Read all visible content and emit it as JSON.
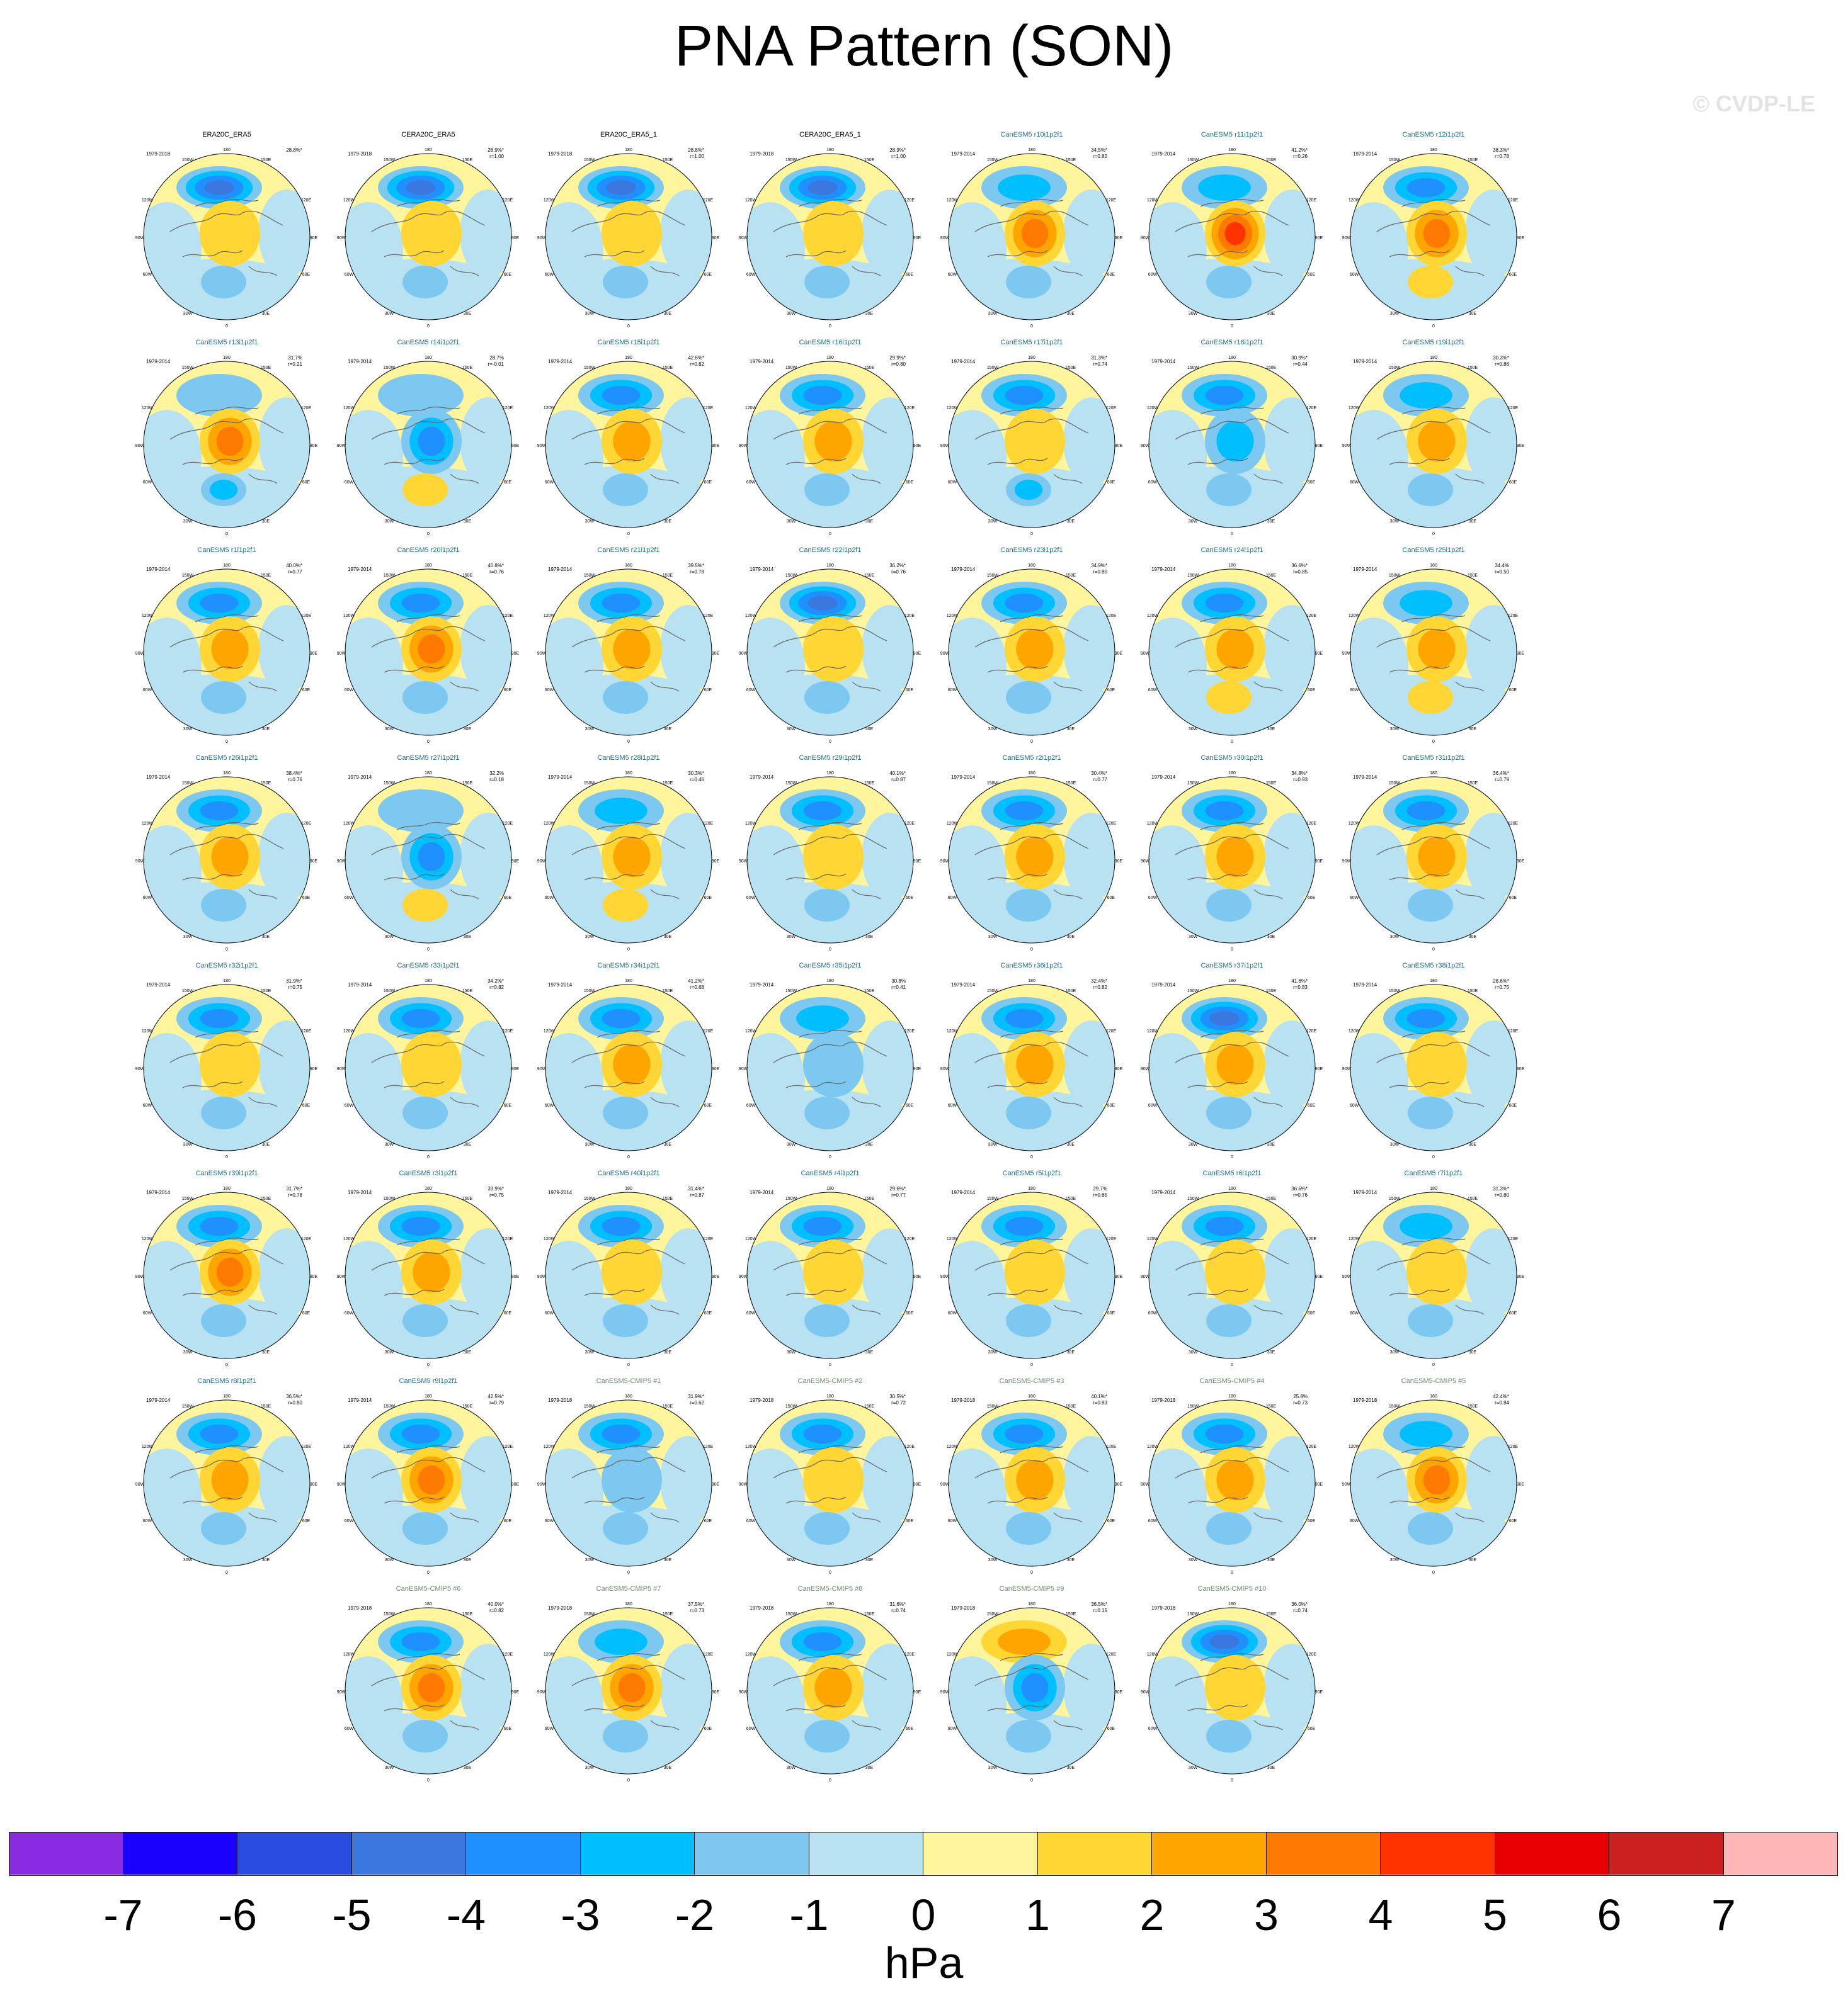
{
  "title": "PNA Pattern (SON)",
  "watermark": "© CVDP-LE",
  "colors": {
    "obs_title": "#000000",
    "model_title": "#1f6f8b",
    "cmip5_title": "#6b8e6b",
    "levels": [
      "#8a2be2",
      "#1a00ff",
      "#2a4ce0",
      "#3a78e0",
      "#1e90ff",
      "#00bfff",
      "#7cc8f0",
      "#b8e2f2",
      "#fff59d",
      "#ffd633",
      "#ffa500",
      "#ff7a00",
      "#ff3300",
      "#e60000",
      "#cc1f1f",
      "#ffb6b6"
    ]
  },
  "longitude_labels": [
    "180",
    "150W",
    "150E",
    "120W",
    "120E",
    "90W",
    "90E",
    "60W",
    "60E",
    "30W",
    "30E",
    "0"
  ],
  "chart_data": {
    "type": "polar contour map panels",
    "variable": "PNA Pattern (SON)",
    "colorbar": {
      "units": "hPa",
      "ticks": [
        "-7",
        "-6",
        "-5",
        "-4",
        "-3",
        "-2",
        "-1",
        "0",
        "1",
        "2",
        "3",
        "4",
        "5",
        "6",
        "7"
      ]
    },
    "panels": [
      {
        "title": "ERA20C_ERA5",
        "period": "1979-2018",
        "pct": "28.8%*",
        "r": "",
        "group": "obs",
        "pac_low": -4,
        "arctic": 1,
        "atl": -1
      },
      {
        "title": "CERA20C_ERA5",
        "period": "1979-2018",
        "pct": "28.9%*",
        "r": "r=1.00",
        "group": "obs",
        "pac_low": -4,
        "arctic": 1,
        "atl": -1
      },
      {
        "title": "ERA20C_ERA5_1",
        "period": "1979-2018",
        "pct": "28.8%*",
        "r": "r=1.00",
        "group": "obs",
        "pac_low": -4,
        "arctic": 1,
        "atl": -1
      },
      {
        "title": "CERA20C_ERA5_1",
        "period": "1979-2018",
        "pct": "28.9%*",
        "r": "r=1.00",
        "group": "obs",
        "pac_low": -4,
        "arctic": 1,
        "atl": -1
      },
      {
        "title": "CanESM5 r10i1p2f1",
        "period": "1979-2014",
        "pct": "34.5%*",
        "r": "r=0.82",
        "group": "model",
        "pac_low": -2,
        "arctic": 3,
        "atl": -1
      },
      {
        "title": "CanESM5 r11i1p2f1",
        "period": "1979-2014",
        "pct": "41.2%*",
        "r": "r=0.26",
        "group": "model",
        "pac_low": -2,
        "arctic": 4,
        "atl": -1
      },
      {
        "title": "CanESM5 r12i1p2f1",
        "period": "1979-2014",
        "pct": "38.3%*",
        "r": "r=0.78",
        "group": "model",
        "pac_low": -3,
        "arctic": 3,
        "atl": 1
      },
      {
        "title": "CanESM5 r13i1p2f1",
        "period": "1979-2014",
        "pct": "31.7%",
        "r": "r=0.21",
        "group": "model",
        "pac_low": -1,
        "arctic": 3,
        "atl": -2
      },
      {
        "title": "CanESM5 r14i1p2f1",
        "period": "1979-2014",
        "pct": "28.7%",
        "r": "r=-0.01",
        "group": "model",
        "pac_low": -1,
        "arctic": -3,
        "atl": 1
      },
      {
        "title": "CanESM5 r15i1p2f1",
        "period": "1979-2014",
        "pct": "42.6%*",
        "r": "r=0.82",
        "group": "model",
        "pac_low": -3,
        "arctic": 2,
        "atl": -1
      },
      {
        "title": "CanESM5 r16i1p2f1",
        "period": "1979-2014",
        "pct": "29.9%*",
        "r": "r=0.80",
        "group": "model",
        "pac_low": -3,
        "arctic": 2,
        "atl": -1
      },
      {
        "title": "CanESM5 r17i1p2f1",
        "period": "1979-2014",
        "pct": "31.3%*",
        "r": "r=0.74",
        "group": "model",
        "pac_low": -3,
        "arctic": 1,
        "atl": -2
      },
      {
        "title": "CanESM5 r18i1p2f1",
        "period": "1979-2014",
        "pct": "30.9%*",
        "r": "r=0.44",
        "group": "model",
        "pac_low": -3,
        "arctic": -2,
        "atl": -1
      },
      {
        "title": "CanESM5 r19i1p2f1",
        "period": "1979-2014",
        "pct": "30.3%*",
        "r": "r=0.86",
        "group": "model",
        "pac_low": -2,
        "arctic": 2,
        "atl": -1
      },
      {
        "title": "CanESM5 r1i1p2f1",
        "period": "1979-2014",
        "pct": "40.0%*",
        "r": "r=0.77",
        "group": "model",
        "pac_low": -3,
        "arctic": 2,
        "atl": -1
      },
      {
        "title": "CanESM5 r20i1p2f1",
        "period": "1979-2014",
        "pct": "40.8%*",
        "r": "r=0.76",
        "group": "model",
        "pac_low": -3,
        "arctic": 3,
        "atl": -1
      },
      {
        "title": "CanESM5 r21i1p2f1",
        "period": "1979-2014",
        "pct": "39.5%*",
        "r": "r=0.78",
        "group": "model",
        "pac_low": -3,
        "arctic": 2,
        "atl": -1
      },
      {
        "title": "CanESM5 r22i1p2f1",
        "period": "1979-2014",
        "pct": "36.2%*",
        "r": "r=0.76",
        "group": "model",
        "pac_low": -4,
        "arctic": 1,
        "atl": -1
      },
      {
        "title": "CanESM5 r23i1p2f1",
        "period": "1979-2014",
        "pct": "34.9%*",
        "r": "r=0.85",
        "group": "model",
        "pac_low": -3,
        "arctic": 2,
        "atl": -1
      },
      {
        "title": "CanESM5 r24i1p2f1",
        "period": "1979-2014",
        "pct": "36.6%*",
        "r": "r=0.85",
        "group": "model",
        "pac_low": -3,
        "arctic": 2,
        "atl": 1
      },
      {
        "title": "CanESM5 r25i1p2f1",
        "period": "1979-2014",
        "pct": "34.4%",
        "r": "r=0.50",
        "group": "model",
        "pac_low": -2,
        "arctic": 2,
        "atl": 1
      },
      {
        "title": "CanESM5 r26i1p2f1",
        "period": "1979-2014",
        "pct": "38.4%*",
        "r": "r=0.76",
        "group": "model",
        "pac_low": -3,
        "arctic": 2,
        "atl": -1
      },
      {
        "title": "CanESM5 r27i1p2f1",
        "period": "1979-2014",
        "pct": "32.2%",
        "r": "r=0.18",
        "group": "model",
        "pac_low": -1,
        "arctic": -3,
        "atl": 1
      },
      {
        "title": "CanESM5 r28i1p2f1",
        "period": "1979-2014",
        "pct": "30.3%*",
        "r": "r=0.46",
        "group": "model",
        "pac_low": -2,
        "arctic": 2,
        "atl": 1
      },
      {
        "title": "CanESM5 r29i1p2f1",
        "period": "1979-2014",
        "pct": "40.1%*",
        "r": "r=0.87",
        "group": "model",
        "pac_low": -3,
        "arctic": 1,
        "atl": -1
      },
      {
        "title": "CanESM5 r2i1p2f1",
        "period": "1979-2014",
        "pct": "30.4%*",
        "r": "r=0.77",
        "group": "model",
        "pac_low": -3,
        "arctic": 2,
        "atl": -1
      },
      {
        "title": "CanESM5 r30i1p2f1",
        "period": "1979-2014",
        "pct": "34.8%*",
        "r": "r=0.93",
        "group": "model",
        "pac_low": -3,
        "arctic": 2,
        "atl": -1
      },
      {
        "title": "CanESM5 r31i1p2f1",
        "period": "1979-2014",
        "pct": "36.4%*",
        "r": "r=0.79",
        "group": "model",
        "pac_low": -3,
        "arctic": 2,
        "atl": -1
      },
      {
        "title": "CanESM5 r32i1p2f1",
        "period": "1979-2014",
        "pct": "31.9%*",
        "r": "r=0.75",
        "group": "model",
        "pac_low": -3,
        "arctic": 1,
        "atl": -1
      },
      {
        "title": "CanESM5 r33i1p2f1",
        "period": "1979-2014",
        "pct": "34.2%*",
        "r": "r=0.82",
        "group": "model",
        "pac_low": -3,
        "arctic": 1,
        "atl": -1
      },
      {
        "title": "CanESM5 r34i1p2f1",
        "period": "1979-2014",
        "pct": "41.2%*",
        "r": "r=0.68",
        "group": "model",
        "pac_low": -3,
        "arctic": 2,
        "atl": -1
      },
      {
        "title": "CanESM5 r35i1p2f1",
        "period": "1979-2014",
        "pct": "30.8%",
        "r": "r=0.41",
        "group": "model",
        "pac_low": -2,
        "arctic": -1,
        "atl": -1
      },
      {
        "title": "CanESM5 r36i1p2f1",
        "period": "1979-2014",
        "pct": "32.4%*",
        "r": "r=0.82",
        "group": "model",
        "pac_low": -3,
        "arctic": 2,
        "atl": -1
      },
      {
        "title": "CanESM5 r37i1p2f1",
        "period": "1979-2014",
        "pct": "41.6%*",
        "r": "r=0.83",
        "group": "model",
        "pac_low": -4,
        "arctic": 2,
        "atl": -1
      },
      {
        "title": "CanESM5 r38i1p2f1",
        "period": "1979-2014",
        "pct": "28.6%*",
        "r": "r=0.75",
        "group": "model",
        "pac_low": -3,
        "arctic": 1,
        "atl": -1
      },
      {
        "title": "CanESM5 r39i1p2f1",
        "period": "1979-2014",
        "pct": "31.7%*",
        "r": "r=0.78",
        "group": "model",
        "pac_low": -3,
        "arctic": 3,
        "atl": -1
      },
      {
        "title": "CanESM5 r3i1p2f1",
        "period": "1979-2014",
        "pct": "33.9%*",
        "r": "r=0.75",
        "group": "model",
        "pac_low": -3,
        "arctic": 2,
        "atl": -1
      },
      {
        "title": "CanESM5 r40i1p2f1",
        "period": "1979-2014",
        "pct": "31.4%*",
        "r": "r=0.87",
        "group": "model",
        "pac_low": -3,
        "arctic": 1,
        "atl": -1
      },
      {
        "title": "CanESM5 r4i1p2f1",
        "period": "1979-2014",
        "pct": "29.6%*",
        "r": "r=0.77",
        "group": "model",
        "pac_low": -3,
        "arctic": 1,
        "atl": -1
      },
      {
        "title": "CanESM5 r5i1p2f1",
        "period": "1979-2014",
        "pct": "29.7%",
        "r": "r=0.65",
        "group": "model",
        "pac_low": -3,
        "arctic": 1,
        "atl": -1
      },
      {
        "title": "CanESM5 r6i1p2f1",
        "period": "1979-2014",
        "pct": "36.6%*",
        "r": "r=0.76",
        "group": "model",
        "pac_low": -3,
        "arctic": 1,
        "atl": -1
      },
      {
        "title": "CanESM5 r7i1p2f1",
        "period": "1979-2014",
        "pct": "31.3%*",
        "r": "r=0.80",
        "group": "model",
        "pac_low": -2,
        "arctic": 1,
        "atl": -1
      },
      {
        "title": "CanESM5 r8i1p2f1",
        "period": "1979-2014",
        "pct": "36.5%*",
        "r": "r=0.80",
        "group": "model",
        "pac_low": -3,
        "arctic": 2,
        "atl": -1
      },
      {
        "title": "CanESM5 r9i1p2f1",
        "period": "1979-2014",
        "pct": "42.5%*",
        "r": "r=0.79",
        "group": "model",
        "pac_low": -3,
        "arctic": 3,
        "atl": -1
      },
      {
        "title": "CanESM5-CMIP5 #1",
        "period": "1979-2018",
        "pct": "31.9%*",
        "r": "r=0.62",
        "group": "cmip5",
        "pac_low": -3,
        "arctic": -1,
        "atl": -1
      },
      {
        "title": "CanESM5-CMIP5 #2",
        "period": "1979-2018",
        "pct": "30.5%*",
        "r": "r=0.72",
        "group": "cmip5",
        "pac_low": -3,
        "arctic": 1,
        "atl": -1
      },
      {
        "title": "CanESM5-CMIP5 #3",
        "period": "1979-2018",
        "pct": "40.1%*",
        "r": "r=0.83",
        "group": "cmip5",
        "pac_low": -3,
        "arctic": 2,
        "atl": -1
      },
      {
        "title": "CanESM5-CMIP5 #4",
        "period": "1979-2018",
        "pct": "25.8%",
        "r": "r=0.73",
        "group": "cmip5",
        "pac_low": -3,
        "arctic": 2,
        "atl": -1
      },
      {
        "title": "CanESM5-CMIP5 #5",
        "period": "1979-2018",
        "pct": "42.4%*",
        "r": "r=0.84",
        "group": "cmip5",
        "pac_low": -2,
        "arctic": 3,
        "atl": -1
      },
      {
        "title": "CanESM5-CMIP5 #6",
        "period": "1979-2018",
        "pct": "40.0%*",
        "r": "r=0.82",
        "group": "cmip5",
        "pac_low": -3,
        "arctic": 3,
        "atl": -1
      },
      {
        "title": "CanESM5-CMIP5 #7",
        "period": "1979-2018",
        "pct": "37.5%*",
        "r": "r=0.73",
        "group": "cmip5",
        "pac_low": -2,
        "arctic": 3,
        "atl": -1
      },
      {
        "title": "CanESM5-CMIP5 #8",
        "period": "1979-2018",
        "pct": "31.6%*",
        "r": "r=0.74",
        "group": "cmip5",
        "pac_low": -3,
        "arctic": 2,
        "atl": -1
      },
      {
        "title": "CanESM5-CMIP5 #9",
        "period": "1979-2018",
        "pct": "36.5%*",
        "r": "r=0.15",
        "group": "cmip5",
        "pac_low": 2,
        "arctic": -3,
        "atl": -1
      },
      {
        "title": "CanESM5-CMIP5 #10",
        "period": "1979-2018",
        "pct": "36.0%*",
        "r": "r=0.74",
        "group": "cmip5",
        "pac_low": -4,
        "arctic": 1,
        "atl": -1
      }
    ]
  }
}
